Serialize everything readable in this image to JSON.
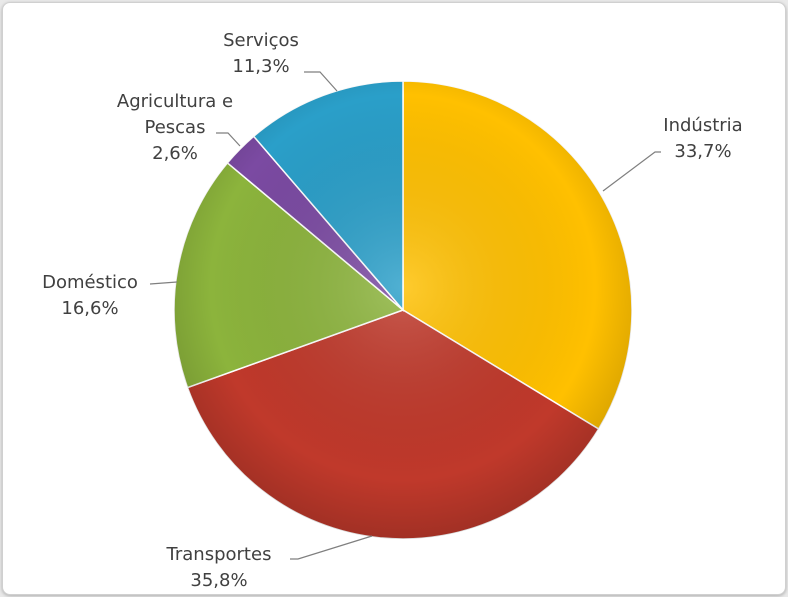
{
  "chart_data": {
    "type": "pie",
    "title": "",
    "slices": [
      {
        "label": "Indústria",
        "value": 33.7,
        "value_label": "33,7%",
        "color": "#FFC000"
      },
      {
        "label": "Transportes",
        "value": 35.8,
        "value_label": "35,8%",
        "color": "#C0392B"
      },
      {
        "label": "Doméstico",
        "value": 16.6,
        "value_label": "16,6%",
        "color": "#8CB43C"
      },
      {
        "label": "Agricultura e Pescas",
        "value": 2.6,
        "value_label": "2,6%",
        "color": "#7B4AA2"
      },
      {
        "label": "Serviços",
        "value": 11.3,
        "value_label": "11,3%",
        "color": "#2A9FC9"
      }
    ],
    "start_angle": "12 o'clock, clockwise",
    "legend": "none (category labels beside slices)"
  }
}
